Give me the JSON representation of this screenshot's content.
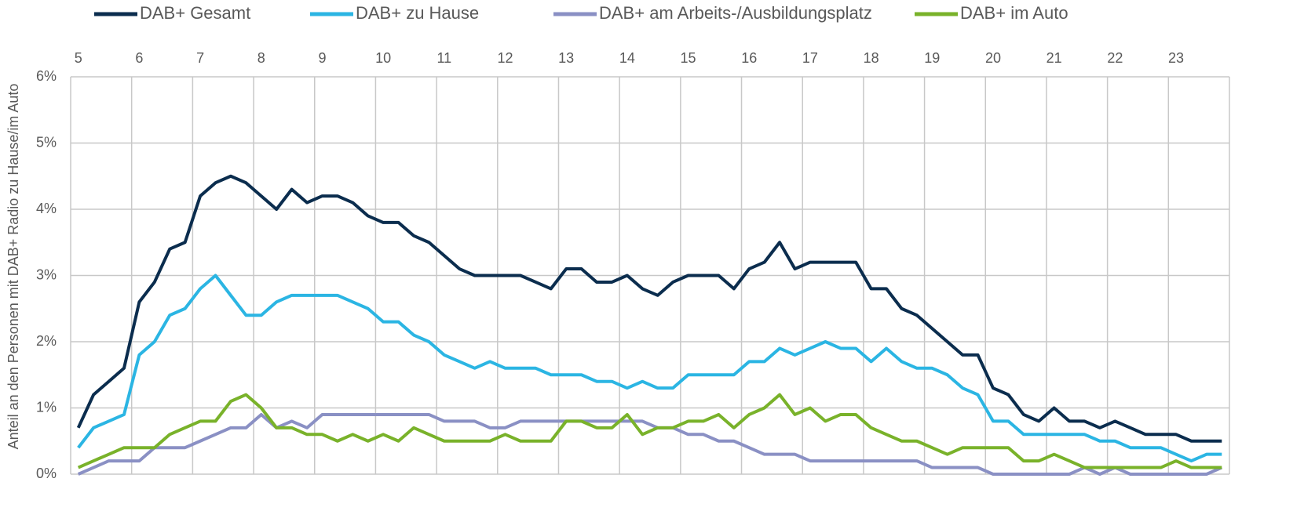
{
  "chart_data": {
    "type": "line",
    "y_label": "Anteil an den Personen mit DAB+ Radio zu Hause/im Auto",
    "x": [
      5,
      5.25,
      5.5,
      5.75,
      6,
      6.25,
      6.5,
      6.75,
      7,
      7.25,
      7.5,
      7.75,
      8,
      8.25,
      8.5,
      8.75,
      9,
      9.25,
      9.5,
      9.75,
      10,
      10.25,
      10.5,
      10.75,
      11,
      11.25,
      11.5,
      11.75,
      12,
      12.25,
      12.5,
      12.75,
      13,
      13.25,
      13.5,
      13.75,
      14,
      14.25,
      14.5,
      14.75,
      15,
      15.25,
      15.5,
      15.75,
      16,
      16.25,
      16.5,
      16.75,
      17,
      17.25,
      17.5,
      17.75,
      18,
      18.25,
      18.5,
      18.75,
      19,
      19.25,
      19.5,
      19.75,
      20,
      20.25,
      20.5,
      20.75,
      21,
      21.25,
      21.5,
      21.75,
      22,
      22.25,
      22.5,
      22.75,
      23,
      23.25,
      23.5,
      23.75
    ],
    "series": [
      {
        "name": "DAB+ Gesamt",
        "color": "#0b2d4e",
        "values": [
          0.7,
          1.2,
          1.4,
          1.6,
          2.6,
          2.9,
          3.4,
          3.5,
          4.2,
          4.4,
          4.5,
          4.4,
          4.2,
          4.0,
          4.3,
          4.1,
          4.2,
          4.2,
          4.1,
          3.9,
          3.8,
          3.8,
          3.6,
          3.5,
          3.3,
          3.1,
          3.0,
          3.0,
          3.0,
          3.0,
          2.9,
          2.8,
          3.1,
          3.1,
          2.9,
          2.9,
          3.0,
          2.8,
          2.7,
          2.9,
          3.0,
          3.0,
          3.0,
          2.8,
          3.1,
          3.2,
          3.5,
          3.1,
          3.2,
          3.2,
          3.2,
          3.2,
          2.8,
          2.8,
          2.5,
          2.4,
          2.2,
          2.0,
          1.8,
          1.8,
          1.3,
          1.2,
          0.9,
          0.8,
          1.0,
          0.8,
          0.8,
          0.7,
          0.8,
          0.7,
          0.6,
          0.6,
          0.6,
          0.5,
          0.5,
          0.5
        ]
      },
      {
        "name": "DAB+ zu Hause",
        "color": "#2bb5e3",
        "values": [
          0.4,
          0.7,
          0.8,
          0.9,
          1.8,
          2.0,
          2.4,
          2.5,
          2.8,
          3.0,
          2.7,
          2.4,
          2.4,
          2.6,
          2.7,
          2.7,
          2.7,
          2.7,
          2.6,
          2.5,
          2.3,
          2.3,
          2.1,
          2.0,
          1.8,
          1.7,
          1.6,
          1.7,
          1.6,
          1.6,
          1.6,
          1.5,
          1.5,
          1.5,
          1.4,
          1.4,
          1.3,
          1.4,
          1.3,
          1.3,
          1.5,
          1.5,
          1.5,
          1.5,
          1.7,
          1.7,
          1.9,
          1.8,
          1.9,
          2.0,
          1.9,
          1.9,
          1.7,
          1.9,
          1.7,
          1.6,
          1.6,
          1.5,
          1.3,
          1.2,
          0.8,
          0.8,
          0.6,
          0.6,
          0.6,
          0.6,
          0.6,
          0.5,
          0.5,
          0.4,
          0.4,
          0.4,
          0.3,
          0.2,
          0.3,
          0.3
        ]
      },
      {
        "name": "DAB+ am Arbeits-/Ausbildungsplatz",
        "color": "#8a90c4",
        "values": [
          0.0,
          0.1,
          0.2,
          0.2,
          0.2,
          0.4,
          0.4,
          0.4,
          0.5,
          0.6,
          0.7,
          0.7,
          0.9,
          0.7,
          0.8,
          0.7,
          0.9,
          0.9,
          0.9,
          0.9,
          0.9,
          0.9,
          0.9,
          0.9,
          0.8,
          0.8,
          0.8,
          0.7,
          0.7,
          0.8,
          0.8,
          0.8,
          0.8,
          0.8,
          0.8,
          0.8,
          0.8,
          0.8,
          0.7,
          0.7,
          0.6,
          0.6,
          0.5,
          0.5,
          0.4,
          0.3,
          0.3,
          0.3,
          0.2,
          0.2,
          0.2,
          0.2,
          0.2,
          0.2,
          0.2,
          0.2,
          0.1,
          0.1,
          0.1,
          0.1,
          0.0,
          0.0,
          0.0,
          0.0,
          0.0,
          0.0,
          0.1,
          0.0,
          0.1,
          0.0,
          0.0,
          0.0,
          0.0,
          0.0,
          0.0,
          0.1
        ]
      },
      {
        "name": "DAB+ im Auto",
        "color": "#79b22a",
        "values": [
          0.1,
          0.2,
          0.3,
          0.4,
          0.4,
          0.4,
          0.6,
          0.7,
          0.8,
          0.8,
          1.1,
          1.2,
          1.0,
          0.7,
          0.7,
          0.6,
          0.6,
          0.5,
          0.6,
          0.5,
          0.6,
          0.5,
          0.7,
          0.6,
          0.5,
          0.5,
          0.5,
          0.5,
          0.6,
          0.5,
          0.5,
          0.5,
          0.8,
          0.8,
          0.7,
          0.7,
          0.9,
          0.6,
          0.7,
          0.7,
          0.8,
          0.8,
          0.9,
          0.7,
          0.9,
          1.0,
          1.2,
          0.9,
          1.0,
          0.8,
          0.9,
          0.9,
          0.7,
          0.6,
          0.5,
          0.5,
          0.4,
          0.3,
          0.4,
          0.4,
          0.4,
          0.4,
          0.2,
          0.2,
          0.3,
          0.2,
          0.1,
          0.1,
          0.1,
          0.1,
          0.1,
          0.1,
          0.2,
          0.1,
          0.1,
          0.1
        ]
      }
    ],
    "xlim": [
      4.875,
      23.875
    ],
    "xticks": [
      5,
      6,
      7,
      8,
      9,
      10,
      11,
      12,
      13,
      14,
      15,
      16,
      17,
      18,
      19,
      20,
      21,
      22,
      23
    ],
    "ylim": [
      0,
      6
    ],
    "yticks": [
      {
        "value": 0,
        "label": "0%"
      },
      {
        "value": 1,
        "label": "1%"
      },
      {
        "value": 2,
        "label": "2%"
      },
      {
        "value": 3,
        "label": "3%"
      },
      {
        "value": 4,
        "label": "4%"
      },
      {
        "value": 5,
        "label": "5%"
      },
      {
        "value": 6,
        "label": "6%"
      }
    ],
    "grid": true,
    "legend": "top"
  }
}
